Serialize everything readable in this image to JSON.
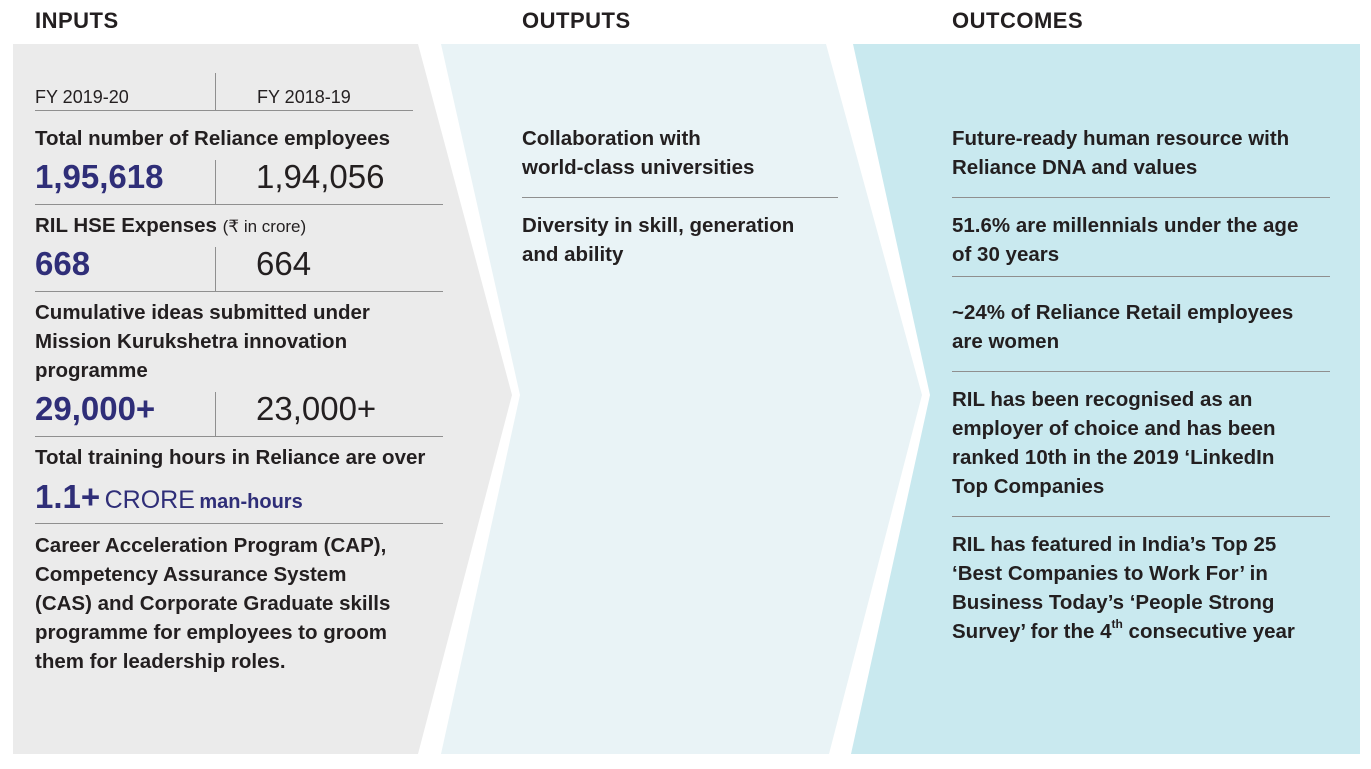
{
  "headers": {
    "inputs": "INPUTS",
    "outputs": "OUTPUTS",
    "outcomes": "OUTCOMES"
  },
  "colors": {
    "inputs_bg": "#ebebeb",
    "outputs_bg": "#e9f3f6",
    "outcomes_bg": "#c9e9ef",
    "accent": "#2f2e78"
  },
  "inputs": {
    "year_current": "FY 2019-20",
    "year_previous": "FY 2018-19",
    "employees": {
      "label": "Total number of Reliance employees",
      "current": "1,95,618",
      "previous": "1,94,056"
    },
    "hse": {
      "label": "RIL HSE Expenses",
      "unit": "(₹ in crore)",
      "current": "668",
      "previous": "664"
    },
    "ideas": {
      "label_lines": [
        "Cumulative ideas submitted under",
        "Mission Kurukshetra innovation",
        "programme"
      ],
      "current": "29,000+",
      "previous": "23,000+"
    },
    "training": {
      "label": "Total training hours in Reliance are over",
      "value": "1.1+",
      "unit": "CRORE",
      "suffix": "man-hours"
    },
    "programs": [
      "Career Acceleration Program (CAP),",
      "Competency Assurance System",
      "(CAS) and Corporate Graduate skills",
      "programme for employees to groom",
      "them for leadership roles."
    ]
  },
  "outputs": [
    [
      "Collaboration with",
      "world-class universities"
    ],
    [
      "Diversity in skill, generation",
      "and ability"
    ]
  ],
  "outcomes": [
    [
      "Future-ready human resource with",
      "Reliance DNA and values"
    ],
    [
      "51.6% are millennials under the age",
      "of 30 years"
    ],
    [
      "~24% of Reliance Retail employees",
      "are women"
    ],
    [
      "RIL has been recognised as an",
      "employer of choice and has been",
      "ranked 10th in the 2019 ‘LinkedIn",
      "Top Companies"
    ],
    [
      "RIL has featured in India’s Top 25",
      "‘Best Companies to Work For’ in",
      "Business Today’s ‘People Strong",
      "Survey’ for the 4",
      "th",
      " consecutive year"
    ]
  ]
}
